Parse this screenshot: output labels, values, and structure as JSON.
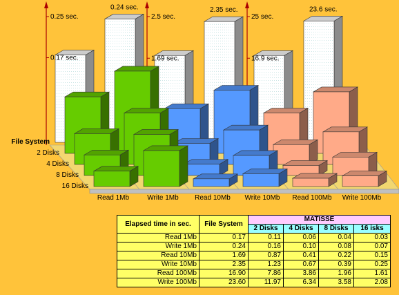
{
  "chart_data": {
    "type": "bar",
    "categories": [
      "Read 1Mb",
      "Write 1Mb",
      "Read 10Mb",
      "Write 10Mb",
      "Read 100Mb",
      "Write 100Mb"
    ],
    "depth_labels": [
      "File System",
      "2 Disks",
      "4 Disks",
      "8 Disks",
      "16 Disks"
    ],
    "series": [
      {
        "name": "File System",
        "values": [
          0.17,
          0.24,
          1.69,
          2.35,
          16.9,
          23.6
        ]
      },
      {
        "name": "2 Disks",
        "values": [
          0.11,
          0.16,
          0.87,
          1.23,
          7.86,
          11.97
        ]
      },
      {
        "name": "4 Disks",
        "values": [
          0.06,
          0.1,
          0.41,
          0.67,
          3.86,
          6.34
        ]
      },
      {
        "name": "8 Disks",
        "values": [
          0.04,
          0.08,
          0.22,
          0.39,
          1.96,
          3.58
        ]
      },
      {
        "name": "16 Disks",
        "values": [
          0.03,
          0.07,
          0.15,
          0.25,
          1.61,
          2.08
        ]
      }
    ],
    "panels": [
      {
        "ymax": 0.25,
        "ticks": [
          {
            "value": 0.25,
            "label": "0.25 sec."
          },
          {
            "value": 0.17,
            "label": "0.17 sec."
          }
        ],
        "annotation": {
          "value": 0.24,
          "label": "0.24 sec."
        }
      },
      {
        "ymax": 2.5,
        "ticks": [
          {
            "value": 2.5,
            "label": "2.5 sec."
          },
          {
            "value": 1.69,
            "label": "1.69 sec."
          }
        ],
        "annotation": {
          "value": 2.35,
          "label": "2.35 sec."
        }
      },
      {
        "ymax": 25,
        "ticks": [
          {
            "value": 25,
            "label": "25 sec."
          },
          {
            "value": 16.9,
            "label": "16.9 sec."
          }
        ],
        "annotation": {
          "value": 23.6,
          "label": "23.6 sec."
        }
      }
    ],
    "colors": {
      "panel1": "#66CC00",
      "panel2": "#5599FF",
      "panel3": "#FFAA88",
      "filesystem": "#FFFFFF"
    }
  },
  "table": {
    "col_header": "Elapsed time in sec.",
    "fs_header": "File System",
    "group_header": "MATISSE",
    "sub_headers": [
      "2 Disks",
      "4 Disks",
      "8 Disks",
      "16   isks"
    ],
    "rows": [
      {
        "label": "Read 1Mb",
        "fs": "0.17",
        "vals": [
          "0.11",
          "0.06",
          "0.04",
          "0.03"
        ]
      },
      {
        "label": "Write 1Mb",
        "fs": "0.24",
        "vals": [
          "0.16",
          "0.10",
          "0.08",
          "0.07"
        ]
      },
      {
        "label": "Read 10Mb",
        "fs": "1.69",
        "vals": [
          "0.87",
          "0.41",
          "0.22",
          "0.15"
        ]
      },
      {
        "label": "Write 10Mb",
        "fs": "2.35",
        "vals": [
          "1.23",
          "0.67",
          "0.39",
          "0.25"
        ]
      },
      {
        "label": "Read 100Mb",
        "fs": "16.90",
        "vals": [
          "7.86",
          "3.86",
          "1.96",
          "1.61"
        ]
      },
      {
        "label": "Write 100Mb",
        "fs": "23.60",
        "vals": [
          "11.97",
          "6.34",
          "3.58",
          "2.08"
        ]
      }
    ]
  }
}
